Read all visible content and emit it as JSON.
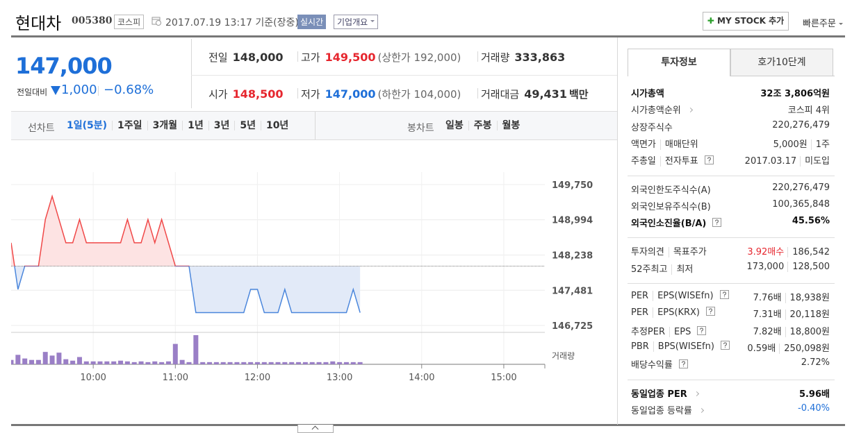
{
  "header": {
    "name": "현대차",
    "code": "005380",
    "market": "코스피",
    "datetime": "2017.07.19 13:17 기준(장중)",
    "realtime": "실시간",
    "company": "기업개요",
    "my_stock": "MY STOCK 추가",
    "quick_order": "빠른주문"
  },
  "price": {
    "current": "147,000",
    "change_label": "전일대비",
    "change": "1,000",
    "change_rate": "−0.68%"
  },
  "summary": [
    {
      "label": "전일",
      "value": "148,000"
    },
    {
      "label": "고가",
      "value": "149,500",
      "tone": "up",
      "note": "(상한가 192,000)"
    },
    {
      "label": "거래량",
      "value": "333,863"
    },
    {
      "label": "시가",
      "value": "148,500",
      "tone": "up"
    },
    {
      "label": "저가",
      "value": "147,000",
      "tone": "down",
      "note": "(하한가 104,000)"
    },
    {
      "label": "거래대금",
      "value": "49,431",
      "unit": "백만"
    }
  ],
  "chart_tabs": {
    "line_label": "선차트",
    "line": [
      "1일(5분)",
      "1주일",
      "3개월",
      "1년",
      "3년",
      "5년",
      "10년"
    ],
    "active": 0,
    "candle_label": "봉차트",
    "candle": [
      "일봉",
      "주봉",
      "월봉"
    ]
  },
  "chart_data": {
    "type": "line",
    "x": [
      "09:00",
      "09:05",
      "09:10",
      "09:15",
      "09:20",
      "09:25",
      "09:30",
      "09:35",
      "09:40",
      "09:45",
      "09:50",
      "09:55",
      "10:00",
      "10:05",
      "10:10",
      "10:15",
      "10:20",
      "10:25",
      "10:30",
      "10:35",
      "10:40",
      "10:45",
      "10:50",
      "10:55",
      "11:00",
      "11:05",
      "11:10",
      "11:15",
      "11:20",
      "11:25",
      "11:30",
      "11:35",
      "11:40",
      "11:45",
      "11:50",
      "11:55",
      "12:00",
      "12:05",
      "12:10",
      "12:15",
      "12:20",
      "12:25",
      "12:30",
      "12:35",
      "12:40",
      "12:45",
      "12:50",
      "12:55",
      "13:00",
      "13:05",
      "13:10",
      "13:15"
    ],
    "values": [
      148500,
      147500,
      148000,
      148000,
      148000,
      149000,
      149500,
      149000,
      148500,
      148500,
      149000,
      148500,
      148500,
      148500,
      148500,
      148500,
      148500,
      149000,
      148500,
      148500,
      149000,
      148500,
      149000,
      148500,
      148000,
      148000,
      148000,
      147000,
      147000,
      147000,
      147000,
      147000,
      147000,
      147000,
      147000,
      147500,
      147500,
      147000,
      147000,
      147000,
      147500,
      147000,
      147000,
      147000,
      147000,
      147000,
      147000,
      147000,
      147000,
      147000,
      147500,
      147000
    ],
    "baseline": 148000,
    "volume": {
      "label": "거래량",
      "values": [
        6,
        13,
        8,
        6,
        6,
        17,
        12,
        16,
        7,
        5,
        10,
        4,
        4,
        4,
        4,
        4,
        5,
        4,
        3,
        4,
        3,
        4,
        3,
        4,
        28,
        6,
        3,
        40,
        3,
        3,
        3,
        3,
        3,
        3,
        3,
        3,
        3,
        3,
        3,
        3,
        3,
        3,
        3,
        3,
        3,
        3,
        3,
        4,
        3,
        3,
        3,
        3
      ],
      "color": "#9a7fc6"
    },
    "xlim": [
      "09:00",
      "15:30"
    ],
    "xticks": [
      "10:00",
      "11:00",
      "12:00",
      "13:00",
      "14:00",
      "15:00"
    ],
    "ylim": [
      146725,
      149750
    ],
    "yticks": [
      {
        "value": 149750,
        "label": "149,750"
      },
      {
        "value": 148994,
        "label": "148,994"
      },
      {
        "value": 148238,
        "label": "148,238"
      },
      {
        "value": 147481,
        "label": "147,481"
      },
      {
        "value": 146725,
        "label": "146,725"
      }
    ],
    "up_color": "#f04848",
    "down_color": "#4a86dc",
    "up_fill": "#fde3e3",
    "down_fill": "#e2eaf8",
    "grid": true
  },
  "side": {
    "tabs": [
      "투자정보",
      "호가10단계"
    ],
    "active": 0,
    "sections": [
      [
        {
          "label": [
            "시가총액"
          ],
          "value": [
            "32조 3,806억원"
          ],
          "strong": true
        },
        {
          "label": [
            "시가총액순위"
          ],
          "link": true,
          "value": [
            "코스피 4위"
          ]
        },
        {
          "label": [
            "상장주식수"
          ],
          "value": [
            "220,276,479"
          ]
        },
        {
          "label": [
            "액면가",
            "매매단위"
          ],
          "value": [
            "5,000원",
            "1주"
          ]
        },
        {
          "label": [
            "주총일",
            "전자투표"
          ],
          "help": true,
          "value": [
            "2017.03.17",
            "미도입"
          ]
        }
      ],
      [
        {
          "label": [
            "외국인한도주식수(A)"
          ],
          "value": [
            "220,276,479"
          ]
        },
        {
          "label": [
            "외국인보유주식수(B)"
          ],
          "value": [
            "100,365,848"
          ]
        },
        {
          "label": [
            "외국인소진율(B/A)"
          ],
          "help": true,
          "value": [
            "45.56%"
          ],
          "strong": true
        }
      ],
      [
        {
          "label": [
            "투자의견",
            "목표주가"
          ],
          "value": [
            "3.92매수",
            "186,542"
          ],
          "tone": "up"
        },
        {
          "label": [
            "52주최고",
            "최저"
          ],
          "value": [
            "173,000",
            "128,500"
          ]
        }
      ],
      [
        {
          "label": [
            "PER",
            "EPS(WISEfn)"
          ],
          "help": true,
          "value": [
            "7.76배",
            "18,938원"
          ]
        },
        {
          "label": [
            "PER",
            "EPS(KRX)"
          ],
          "help": true,
          "value": [
            "7.31배",
            "20,118원"
          ]
        },
        {
          "label": [
            "추정PER",
            "EPS"
          ],
          "help": true,
          "value": [
            "7.82배",
            "18,800원"
          ]
        },
        {
          "label": [
            "PBR",
            "BPS(WISEfn)"
          ],
          "help": true,
          "value": [
            "0.59배",
            "250,098원"
          ]
        },
        {
          "label": [
            "배당수익률"
          ],
          "help": true,
          "value": [
            "2.72%"
          ]
        }
      ],
      [
        {
          "label": [
            "동일업종 PER"
          ],
          "link": true,
          "value": [
            "5.96배"
          ],
          "strong": true
        },
        {
          "label": [
            "동일업종 등락률"
          ],
          "link": true,
          "value": [
            "-0.40%"
          ],
          "tone": "down"
        }
      ]
    ]
  }
}
